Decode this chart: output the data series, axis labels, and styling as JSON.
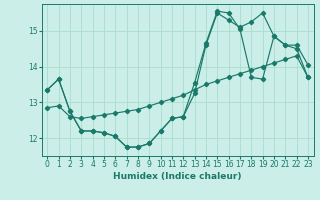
{
  "xlabel": "Humidex (Indice chaleur)",
  "xlim": [
    -0.5,
    23.5
  ],
  "ylim": [
    11.5,
    15.75
  ],
  "yticks": [
    12,
    13,
    14,
    15
  ],
  "xticks": [
    0,
    1,
    2,
    3,
    4,
    5,
    6,
    7,
    8,
    9,
    10,
    11,
    12,
    13,
    14,
    15,
    16,
    17,
    18,
    19,
    20,
    21,
    22,
    23
  ],
  "bg_color": "#cceee8",
  "line_color": "#1a7a6a",
  "grid_color": "#aaddcc",
  "lines": [
    {
      "x": [
        0,
        1,
        2,
        3,
        4,
        5,
        6,
        7,
        8,
        9,
        10,
        11,
        12,
        13,
        14,
        15,
        16,
        17,
        18,
        19,
        20,
        21,
        22,
        23
      ],
      "y": [
        12.85,
        12.9,
        12.6,
        12.55,
        12.6,
        12.65,
        12.7,
        12.75,
        12.8,
        12.9,
        13.0,
        13.1,
        13.2,
        13.35,
        13.5,
        13.6,
        13.7,
        13.8,
        13.9,
        14.0,
        14.1,
        14.2,
        14.3,
        13.7
      ]
    },
    {
      "x": [
        0,
        1,
        2,
        3,
        4,
        5,
        6,
        7,
        8,
        9,
        10,
        11,
        12,
        13,
        14,
        15,
        16,
        17,
        18,
        19,
        20,
        21,
        22,
        23
      ],
      "y": [
        13.35,
        13.65,
        12.75,
        12.2,
        12.2,
        12.15,
        12.05,
        11.75,
        11.75,
        11.85,
        12.2,
        12.55,
        12.6,
        13.25,
        14.6,
        15.5,
        15.3,
        15.1,
        15.25,
        15.5,
        14.85,
        14.6,
        14.5,
        13.7
      ]
    },
    {
      "x": [
        0,
        1,
        2,
        3,
        4,
        5,
        6,
        7,
        8,
        9,
        10,
        11,
        12,
        13,
        14,
        15,
        16,
        17,
        18,
        19,
        20,
        21,
        22,
        23
      ],
      "y": [
        13.35,
        13.65,
        12.75,
        12.2,
        12.2,
        12.15,
        12.05,
        11.75,
        11.75,
        11.85,
        12.2,
        12.55,
        12.6,
        13.55,
        14.65,
        15.55,
        15.5,
        15.05,
        13.7,
        13.65,
        14.85,
        14.6,
        14.6,
        14.05
      ]
    }
  ]
}
